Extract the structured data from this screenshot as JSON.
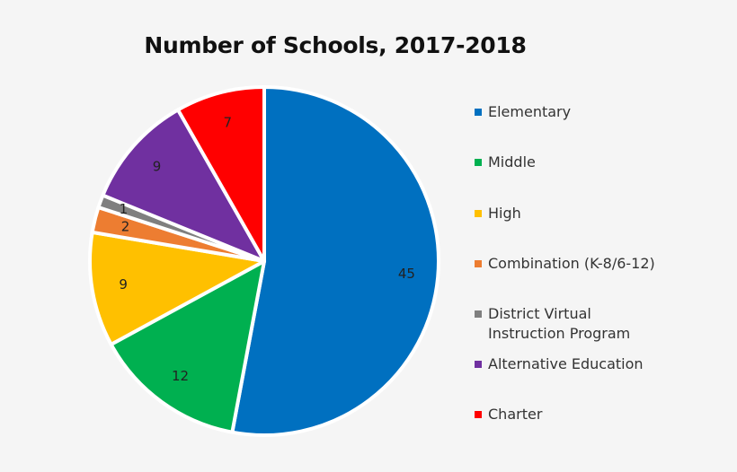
{
  "chart_data": {
    "type": "pie",
    "title": "Number of Schools, 2017-2018",
    "categories": [
      "Elementary",
      "Middle",
      "High",
      "Combination (K-8/6-12)",
      "District Virtual\nInstruction Program",
      "Alternative Education",
      "Charter"
    ],
    "values": [
      45,
      12,
      9,
      2,
      1,
      9,
      7
    ],
    "colors": [
      "#0070c0",
      "#00b050",
      "#ffc000",
      "#ed7d31",
      "#7f7f7f",
      "#7030a0",
      "#ff0000"
    ],
    "data_labels": [
      "45",
      "12",
      "9",
      "2",
      "1",
      "9",
      "7"
    ],
    "legend_position": "right"
  }
}
